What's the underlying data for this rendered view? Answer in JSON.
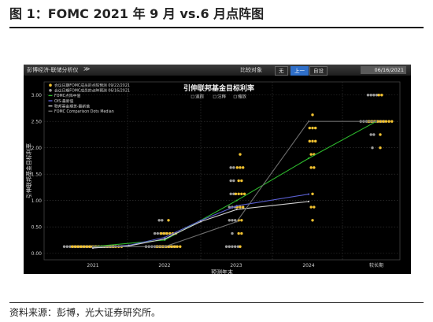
{
  "figure": {
    "title": "图 1：FOMC 2021 年 9 月 vs.6 月点阵图",
    "source": "资料来源：彭博，光大证券研究所。"
  },
  "toolbar": {
    "menu": "彭博经济-联储分析仪",
    "chevron": "≫",
    "compare_label": "比较对象",
    "btn_none": "无",
    "btn_prev": "上一",
    "btn_custom": "自设",
    "date_value": "06/16/2021"
  },
  "colors": {
    "yellow": "#f2c230",
    "gray": "#9a9a9a",
    "green": "#2db82d",
    "purple": "#5a5fd0",
    "light_gray": "#d0d0d0",
    "dark_gray": "#6e6e6e"
  },
  "chart_data": {
    "type": "scatter",
    "title": "引伸联邦基金目标利率",
    "controls": [
      "追踪",
      "注释",
      "缩放"
    ],
    "xlabel": "预测年末",
    "ylabel": "引伸联邦基金目标利率",
    "x_categories": [
      "2021",
      "2022",
      "2023",
      "2024",
      "较长期"
    ],
    "ylim": [
      -0.125,
      3.25
    ],
    "yticks": [
      "0.00",
      "0.50",
      "1.00",
      "1.50",
      "2.00",
      "2.50",
      "3.00"
    ],
    "legend": [
      {
        "label": "会议日期FOMC成员的点阵预测 09/22/2021",
        "marker": "dot",
        "color": "#f2c230"
      },
      {
        "label": "会议日期FOMC成员的点阵预测 06/16/2021",
        "marker": "dot",
        "color": "#9a9a9a"
      },
      {
        "label": "FOMC点阵中值",
        "marker": "line",
        "color": "#2db82d"
      },
      {
        "label": "OIS-最新值",
        "marker": "line",
        "color": "#5a5fd0"
      },
      {
        "label": "联邦基金期货-最新值",
        "marker": "line",
        "color": "#d0d0d0"
      },
      {
        "label": "FOMC Comparison Dots Median",
        "marker": "line",
        "color": "#6e6e6e"
      }
    ],
    "dots_sep2021": [
      {
        "year": "2021",
        "rate": 0.125,
        "count": 18
      },
      {
        "year": "2022",
        "rate": 0.125,
        "count": 9
      },
      {
        "year": "2022",
        "rate": 0.375,
        "count": 6
      },
      {
        "year": "2022",
        "rate": 0.625,
        "count": 1
      },
      {
        "year": "2023",
        "rate": 0.125,
        "count": 1
      },
      {
        "year": "2023",
        "rate": 0.375,
        "count": 2
      },
      {
        "year": "2023",
        "rate": 0.625,
        "count": 2
      },
      {
        "year": "2023",
        "rate": 0.875,
        "count": 3
      },
      {
        "year": "2023",
        "rate": 1.125,
        "count": 4
      },
      {
        "year": "2023",
        "rate": 1.375,
        "count": 2
      },
      {
        "year": "2023",
        "rate": 1.625,
        "count": 3
      },
      {
        "year": "2023",
        "rate": 1.875,
        "count": 1
      },
      {
        "year": "2024",
        "rate": 0.625,
        "count": 1
      },
      {
        "year": "2024",
        "rate": 0.875,
        "count": 2
      },
      {
        "year": "2024",
        "rate": 1.125,
        "count": 1
      },
      {
        "year": "2024",
        "rate": 1.625,
        "count": 2
      },
      {
        "year": "2024",
        "rate": 1.875,
        "count": 2
      },
      {
        "year": "2024",
        "rate": 2.125,
        "count": 3
      },
      {
        "year": "2024",
        "rate": 2.375,
        "count": 3
      },
      {
        "year": "2024",
        "rate": 2.625,
        "count": 1
      },
      {
        "year": "较长期",
        "rate": 2.0,
        "count": 1
      },
      {
        "year": "较长期",
        "rate": 2.25,
        "count": 1
      },
      {
        "year": "较长期",
        "rate": 2.5,
        "count": 9
      },
      {
        "year": "较长期",
        "rate": 3.0,
        "count": 2
      }
    ],
    "dots_jun2021": [
      {
        "year": "2021",
        "rate": 0.125,
        "count": 18
      },
      {
        "year": "2022",
        "rate": 0.125,
        "count": 11
      },
      {
        "year": "2022",
        "rate": 0.375,
        "count": 5
      },
      {
        "year": "2022",
        "rate": 0.625,
        "count": 2
      },
      {
        "year": "2023",
        "rate": 0.125,
        "count": 5
      },
      {
        "year": "2023",
        "rate": 0.375,
        "count": 1
      },
      {
        "year": "2023",
        "rate": 0.625,
        "count": 3
      },
      {
        "year": "2023",
        "rate": 0.875,
        "count": 3
      },
      {
        "year": "2023",
        "rate": 1.125,
        "count": 2
      },
      {
        "year": "2023",
        "rate": 1.375,
        "count": 2
      },
      {
        "year": "2023",
        "rate": 1.625,
        "count": 2
      },
      {
        "year": "较长期",
        "rate": 2.0,
        "count": 1
      },
      {
        "year": "较长期",
        "rate": 2.25,
        "count": 2
      },
      {
        "year": "较长期",
        "rate": 2.5,
        "count": 9
      },
      {
        "year": "较长期",
        "rate": 3.0,
        "count": 4
      }
    ],
    "lines": [
      {
        "name": "FOMC点阵中值",
        "color": "#2db82d",
        "points": [
          [
            2021.0,
            0.125
          ],
          [
            2022.0,
            0.25
          ],
          [
            2023.0,
            1.0
          ],
          [
            2024.0,
            1.8
          ],
          [
            2025.0,
            2.5
          ]
        ]
      },
      {
        "name": "OIS-最新值",
        "color": "#5a5fd0",
        "points": [
          [
            2021.0,
            0.1
          ],
          [
            2021.5,
            0.15
          ],
          [
            2022.0,
            0.3
          ],
          [
            2022.5,
            0.62
          ],
          [
            2023.0,
            0.9
          ],
          [
            2024.0,
            1.12
          ]
        ]
      },
      {
        "name": "联邦基金期货-最新值",
        "color": "#d0d0d0",
        "points": [
          [
            2021.0,
            0.1
          ],
          [
            2021.5,
            0.14
          ],
          [
            2022.0,
            0.27
          ],
          [
            2022.5,
            0.6
          ],
          [
            2023.0,
            0.83
          ],
          [
            2024.0,
            0.98
          ]
        ]
      },
      {
        "name": "FOMC Comparison Dots Median",
        "color": "#6e6e6e",
        "points": [
          [
            2021.0,
            0.125
          ],
          [
            2022.0,
            0.125
          ],
          [
            2023.0,
            0.6
          ],
          [
            2024.0,
            2.5
          ],
          [
            2025.0,
            2.5
          ]
        ]
      }
    ]
  }
}
